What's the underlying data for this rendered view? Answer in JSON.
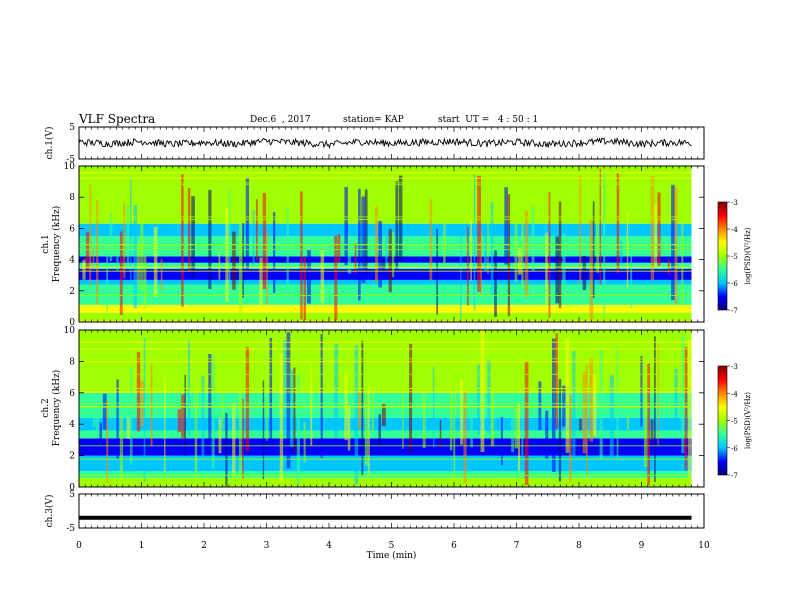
{
  "header": {
    "title": "VLF Spectra",
    "date": "Dec.6  , 2017",
    "station": "station= KAP",
    "start_ut": "start  UT =   4 : 50 : 1"
  },
  "chart_data": [
    {
      "type": "line",
      "panel": "ch1-waveform",
      "ylabel": "ch.1(V)",
      "y_ticks": [
        "5",
        "-5"
      ],
      "ylim": [
        -5,
        5
      ],
      "xlim": [
        0,
        10
      ],
      "description_values": "noisy waveform around 0 V, amplitude about ±1.5 V",
      "x": [
        0.0,
        0.5,
        1.0,
        1.5,
        2.0,
        2.5,
        3.0,
        3.5,
        4.0,
        4.5,
        5.0,
        5.5,
        6.0,
        6.5,
        7.0,
        7.5,
        8.0,
        8.5,
        9.0,
        9.5,
        9.8
      ],
      "y": [
        0.3,
        -0.2,
        0.5,
        -0.4,
        0.2,
        -0.3,
        0.6,
        0.1,
        -0.5,
        0.4,
        -0.1,
        0.2,
        0.5,
        -0.2,
        0.3,
        -0.4,
        0.1,
        0.6,
        -0.3,
        0.2,
        0.0
      ]
    },
    {
      "type": "heatmap",
      "panel": "ch1-spectrogram",
      "ylabel_line1": "ch.1",
      "ylabel_line2": "Frequency  (kHz)",
      "y_ticks": [
        "0",
        "2",
        "4",
        "6",
        "8",
        "10"
      ],
      "ylim": [
        0,
        10
      ],
      "xlim": [
        0,
        10
      ],
      "colorbar": {
        "label": "log(PSD)(V²/Hz)",
        "ticks": [
          "-3",
          "-4",
          "-5",
          "-6",
          "-7"
        ],
        "range": [
          -7,
          -3
        ]
      },
      "bands_khz": [
        {
          "from": 0.0,
          "to": 0.6,
          "level": -5.2
        },
        {
          "from": 0.6,
          "to": 1.1,
          "level": -4.6
        },
        {
          "from": 1.1,
          "to": 2.4,
          "level": -5.4
        },
        {
          "from": 2.4,
          "to": 2.7,
          "level": -6.0
        },
        {
          "from": 2.7,
          "to": 3.4,
          "level": -6.7
        },
        {
          "from": 3.4,
          "to": 3.8,
          "level": -5.6
        },
        {
          "from": 3.8,
          "to": 4.2,
          "level": -6.3
        },
        {
          "from": 4.2,
          "to": 5.5,
          "level": -5.6
        },
        {
          "from": 5.5,
          "to": 6.3,
          "level": -6.0
        },
        {
          "from": 6.3,
          "to": 10.0,
          "level": -5.0
        }
      ]
    },
    {
      "type": "heatmap",
      "panel": "ch2-spectrogram",
      "ylabel_line1": "ch.2",
      "ylabel_line2": "Frequency  (kHz)",
      "y_ticks": [
        "0",
        "2",
        "4",
        "6",
        "8",
        "10"
      ],
      "ylim": [
        0,
        10
      ],
      "xlim": [
        0,
        10
      ],
      "colorbar": {
        "label": "log(PSD)(V²/Hz)",
        "ticks": [
          "-3",
          "-4",
          "-5",
          "-6",
          "-7"
        ],
        "range": [
          -7,
          -3
        ]
      },
      "bands_khz": [
        {
          "from": 0.0,
          "to": 0.6,
          "level": -5.0
        },
        {
          "from": 0.6,
          "to": 1.0,
          "level": -5.6
        },
        {
          "from": 1.0,
          "to": 2.0,
          "level": -5.8
        },
        {
          "from": 2.0,
          "to": 3.1,
          "level": -6.7
        },
        {
          "from": 3.1,
          "to": 3.6,
          "level": -5.6
        },
        {
          "from": 3.6,
          "to": 4.4,
          "level": -5.9
        },
        {
          "from": 4.4,
          "to": 6.0,
          "level": -5.4
        },
        {
          "from": 6.0,
          "to": 10.0,
          "level": -4.9
        }
      ]
    },
    {
      "type": "line",
      "panel": "ch3-waveform",
      "ylabel": "ch.3(V)",
      "y_ticks": [
        "5",
        "-5"
      ],
      "ylim": [
        -5,
        5
      ],
      "xlim": [
        0,
        10
      ],
      "x": [
        0,
        9.8
      ],
      "y": [
        -2.0,
        -2.0
      ]
    }
  ],
  "xaxis": {
    "label": "Time  (min)",
    "ticks": [
      "0",
      "1",
      "2",
      "3",
      "4",
      "5",
      "6",
      "7",
      "8",
      "9",
      "10"
    ]
  },
  "colors": {
    "colormap": [
      "#00007a",
      "#0000ff",
      "#00c8ff",
      "#33ff99",
      "#a0ff00",
      "#ffff00",
      "#ff8800",
      "#ff0000",
      "#7a0000"
    ]
  }
}
